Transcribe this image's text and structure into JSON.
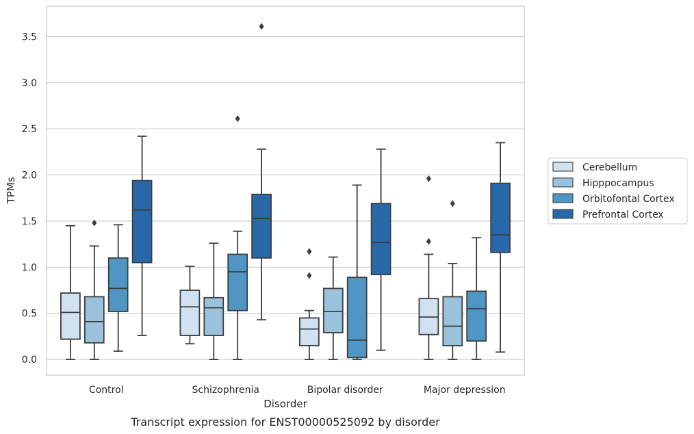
{
  "chart_data": {
    "type": "boxplot",
    "caption": "Transcript expression for ENST00000525092 by disorder",
    "xlabel": "Disorder",
    "ylabel": "TPMs",
    "ylim": [
      -0.17,
      3.83
    ],
    "yticks": [
      0.0,
      0.5,
      1.0,
      1.5,
      2.0,
      2.5,
      3.0,
      3.5
    ],
    "ytick_labels": [
      "0.0",
      "0.5",
      "1.0",
      "1.5",
      "2.0",
      "2.5",
      "3.0",
      "3.5"
    ],
    "grid": "horizontal",
    "legend_position": "right",
    "categories": [
      "Control",
      "Schizophrenia",
      "Bipolar disorder",
      "Major depression"
    ],
    "series": [
      {
        "name": "Cerebellum",
        "color": "#d0e1f2",
        "boxes": [
          {
            "whislo": 0.0,
            "q1": 0.22,
            "med": 0.51,
            "q3": 0.72,
            "whishi": 1.45,
            "fliers": []
          },
          {
            "whislo": 0.17,
            "q1": 0.26,
            "med": 0.57,
            "q3": 0.75,
            "whishi": 1.01,
            "fliers": []
          },
          {
            "whislo": 0.0,
            "q1": 0.15,
            "med": 0.33,
            "q3": 0.45,
            "whishi": 0.53,
            "fliers": [
              0.91,
              1.17
            ]
          },
          {
            "whislo": 0.0,
            "q1": 0.27,
            "med": 0.46,
            "q3": 0.66,
            "whishi": 1.14,
            "fliers": [
              1.28,
              1.96
            ]
          }
        ]
      },
      {
        "name": "Hipppocampus",
        "color": "#9ac2dc",
        "boxes": [
          {
            "whislo": 0.0,
            "q1": 0.18,
            "med": 0.41,
            "q3": 0.68,
            "whishi": 1.23,
            "fliers": [
              1.48
            ]
          },
          {
            "whislo": 0.0,
            "q1": 0.26,
            "med": 0.56,
            "q3": 0.67,
            "whishi": 1.26,
            "fliers": []
          },
          {
            "whislo": 0.0,
            "q1": 0.29,
            "med": 0.52,
            "q3": 0.77,
            "whishi": 1.11,
            "fliers": []
          },
          {
            "whislo": 0.0,
            "q1": 0.15,
            "med": 0.36,
            "q3": 0.68,
            "whishi": 1.04,
            "fliers": [
              1.69
            ]
          }
        ]
      },
      {
        "name": "Orbitofontal Cortex",
        "color": "#5096c5",
        "boxes": [
          {
            "whislo": 0.09,
            "q1": 0.52,
            "med": 0.77,
            "q3": 1.1,
            "whishi": 1.46,
            "fliers": []
          },
          {
            "whislo": 0.0,
            "q1": 0.53,
            "med": 0.95,
            "q3": 1.14,
            "whishi": 1.39,
            "fliers": [
              2.61
            ]
          },
          {
            "whislo": 0.0,
            "q1": 0.02,
            "med": 0.21,
            "q3": 0.89,
            "whishi": 1.89,
            "fliers": []
          },
          {
            "whislo": 0.0,
            "q1": 0.2,
            "med": 0.55,
            "q3": 0.74,
            "whishi": 1.32,
            "fliers": []
          }
        ]
      },
      {
        "name": "Prefrontal Cortex",
        "color": "#2868a9",
        "boxes": [
          {
            "whislo": 0.26,
            "q1": 1.05,
            "med": 1.62,
            "q3": 1.94,
            "whishi": 2.42,
            "fliers": []
          },
          {
            "whislo": 0.43,
            "q1": 1.1,
            "med": 1.53,
            "q3": 1.79,
            "whishi": 2.28,
            "fliers": [
              3.61
            ]
          },
          {
            "whislo": 0.1,
            "q1": 0.92,
            "med": 1.27,
            "q3": 1.69,
            "whishi": 2.28,
            "fliers": []
          },
          {
            "whislo": 0.08,
            "q1": 1.16,
            "med": 1.35,
            "q3": 1.91,
            "whishi": 2.35,
            "fliers": []
          }
        ]
      }
    ]
  }
}
